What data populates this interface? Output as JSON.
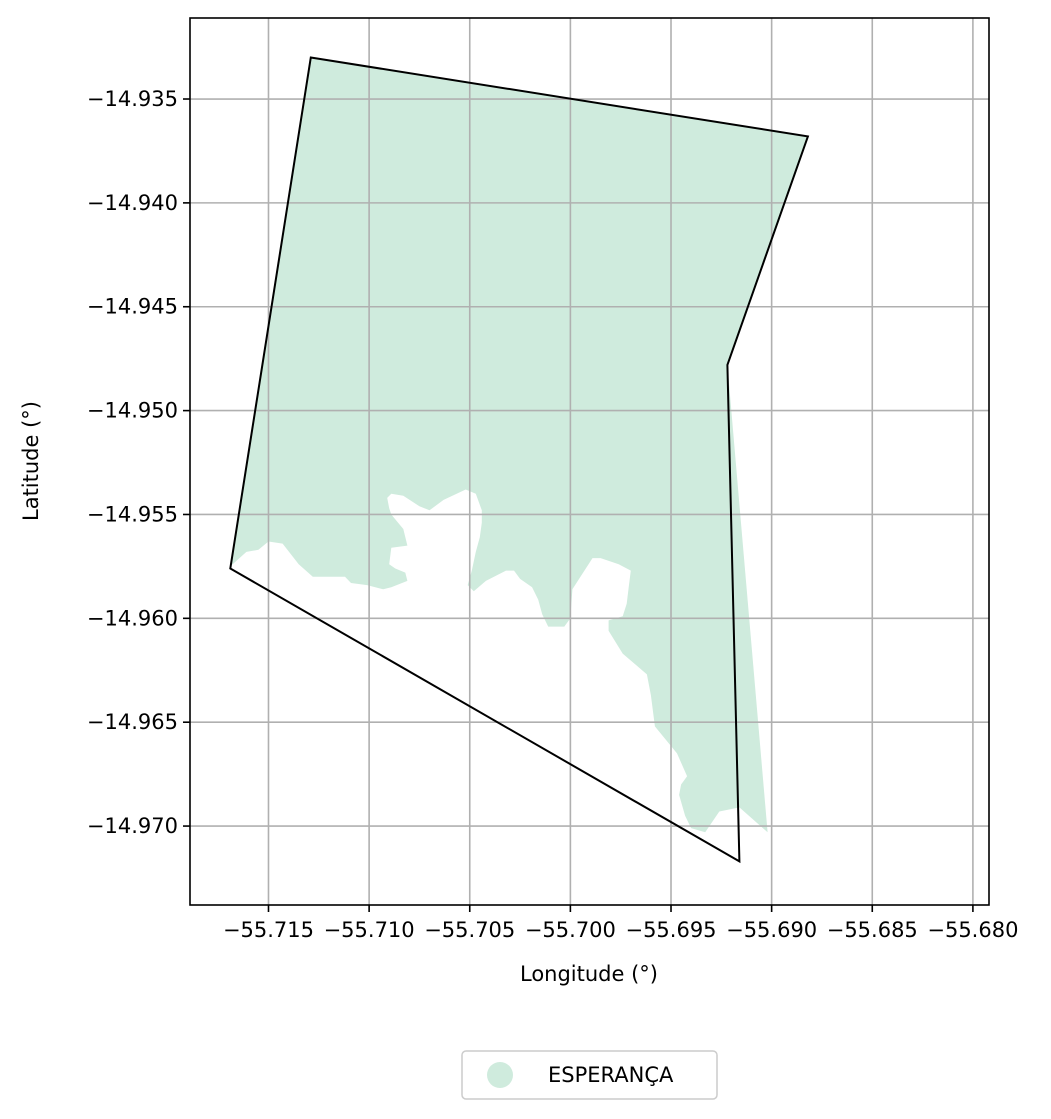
{
  "chart_data": {
    "type": "map",
    "xlabel": "Longitude (°)",
    "ylabel": "Latitude (°)",
    "xlim": [
      -55.7189,
      -55.6792
    ],
    "ylim": [
      -14.9738,
      -14.9311
    ],
    "grid": true,
    "x_ticks": [
      -55.715,
      -55.71,
      -55.705,
      -55.7,
      -55.695,
      -55.69,
      -55.685,
      -55.68
    ],
    "x_tick_labels": [
      "−55.715",
      "−55.710",
      "−55.705",
      "−55.700",
      "−55.695",
      "−55.690",
      "−55.685",
      "−55.680"
    ],
    "y_ticks": [
      -14.935,
      -14.94,
      -14.945,
      -14.95,
      -14.955,
      -14.96,
      -14.965,
      -14.97
    ],
    "y_tick_labels": [
      "−14.935",
      "−14.940",
      "−14.945",
      "−14.950",
      "−14.955",
      "−14.960",
      "−14.965",
      "−14.970"
    ],
    "legend_placement": "bottom-center, below plot",
    "series": [
      {
        "name": "ESPERANÇA",
        "fill_color": "#cfebdd",
        "shaded_area": [
          [
            -55.7129,
            -14.933
          ],
          [
            -55.6882,
            -14.9368
          ],
          [
            -55.6922,
            -14.9478
          ],
          [
            -55.6902,
            -14.9703
          ],
          [
            -55.6916,
            -14.9691
          ],
          [
            -55.6926,
            -14.9693
          ],
          [
            -55.6933,
            -14.9703
          ],
          [
            -55.694,
            -14.9701
          ],
          [
            -55.6943,
            -14.9695
          ],
          [
            -55.6946,
            -14.9685
          ],
          [
            -55.6945,
            -14.968
          ],
          [
            -55.6942,
            -14.9676
          ],
          [
            -55.6947,
            -14.9665
          ],
          [
            -55.6958,
            -14.9652
          ],
          [
            -55.696,
            -14.9637
          ],
          [
            -55.6962,
            -14.9627
          ],
          [
            -55.6974,
            -14.9617
          ],
          [
            -55.6981,
            -14.9606
          ],
          [
            -55.6981,
            -14.9601
          ],
          [
            -55.6974,
            -14.9599
          ],
          [
            -55.6972,
            -14.9593
          ],
          [
            -55.6971,
            -14.9585
          ],
          [
            -55.697,
            -14.9577
          ],
          [
            -55.6976,
            -14.9574
          ],
          [
            -55.6985,
            -14.9571
          ],
          [
            -55.6989,
            -14.9571
          ],
          [
            -55.6999,
            -14.9586
          ],
          [
            -55.7,
            -14.96
          ],
          [
            -55.7003,
            -14.9604
          ],
          [
            -55.7011,
            -14.9604
          ],
          [
            -55.7014,
            -14.9598
          ],
          [
            -55.7016,
            -14.9591
          ],
          [
            -55.7019,
            -14.9585
          ],
          [
            -55.7025,
            -14.9581
          ],
          [
            -55.7028,
            -14.9577
          ],
          [
            -55.7032,
            -14.9577
          ],
          [
            -55.7042,
            -14.9582
          ],
          [
            -55.7048,
            -14.9587
          ],
          [
            -55.7051,
            -14.9584
          ],
          [
            -55.7049,
            -14.9577
          ],
          [
            -55.7047,
            -14.9568
          ],
          [
            -55.7045,
            -14.9561
          ],
          [
            -55.7044,
            -14.9554
          ],
          [
            -55.7044,
            -14.9548
          ],
          [
            -55.7047,
            -14.954
          ],
          [
            -55.7052,
            -14.9538
          ],
          [
            -55.7063,
            -14.9543
          ],
          [
            -55.707,
            -14.9548
          ],
          [
            -55.7075,
            -14.9546
          ],
          [
            -55.7083,
            -14.9541
          ],
          [
            -55.7089,
            -14.954
          ],
          [
            -55.7091,
            -14.9542
          ],
          [
            -55.709,
            -14.9547
          ],
          [
            -55.7089,
            -14.955
          ],
          [
            -55.7083,
            -14.9557
          ],
          [
            -55.7081,
            -14.9565
          ],
          [
            -55.7089,
            -14.9566
          ],
          [
            -55.709,
            -14.9574
          ],
          [
            -55.7087,
            -14.9576
          ],
          [
            -55.7082,
            -14.9578
          ],
          [
            -55.7081,
            -14.9582
          ],
          [
            -55.7089,
            -14.9585
          ],
          [
            -55.7093,
            -14.9586
          ],
          [
            -55.7101,
            -14.9584
          ],
          [
            -55.7109,
            -14.9583
          ],
          [
            -55.7112,
            -14.958
          ],
          [
            -55.7118,
            -14.958
          ],
          [
            -55.7128,
            -14.958
          ],
          [
            -55.7135,
            -14.9574
          ],
          [
            -55.7143,
            -14.9564
          ],
          [
            -55.715,
            -14.9563
          ],
          [
            -55.7155,
            -14.9567
          ],
          [
            -55.7161,
            -14.9568
          ],
          [
            -55.7169,
            -14.9575
          ]
        ]
      }
    ],
    "outline": {
      "name": "",
      "stroke_color": "#000000",
      "points": [
        [
          -55.7129,
          -14.933
        ],
        [
          -55.6882,
          -14.9368
        ],
        [
          -55.6922,
          -14.9478
        ],
        [
          -55.6916,
          -14.9717
        ],
        [
          -55.7169,
          -14.9576
        ]
      ]
    }
  }
}
